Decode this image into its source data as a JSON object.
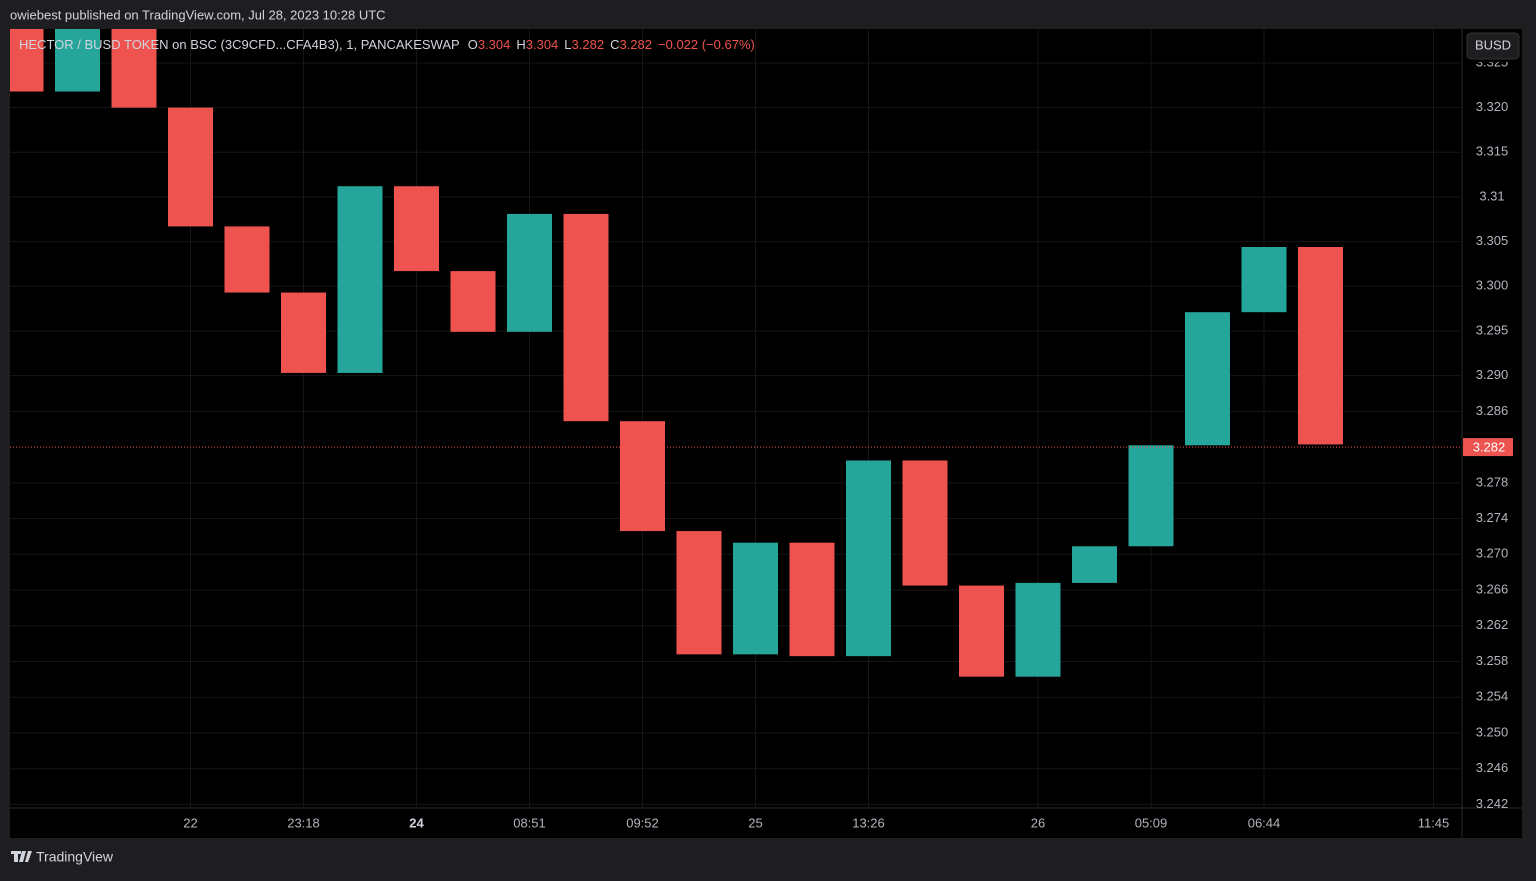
{
  "header": {
    "published": "owiebest published on TradingView.com, Jul 28, 2023 10:28 UTC",
    "brand": "TradingView"
  },
  "chart_data": {
    "type": "boxes",
    "title": "HECTOR / BUSD TOKEN on BSC (3C9CFD...CFA4B3), 1, PANCAKESWAP",
    "ohlc": [
      {
        "name": "O",
        "value": 3.304
      },
      {
        "name": "H",
        "value": 3.304
      },
      {
        "name": "L",
        "value": 3.282
      },
      {
        "name": "C",
        "value": 3.282
      }
    ],
    "change": "−0.022 (−0.67%)",
    "currency": "BUSD",
    "categories": [
      null,
      null,
      null,
      "22",
      null,
      "23:18",
      null,
      "24",
      null,
      "08:51",
      null,
      "09:52",
      null,
      "25",
      null,
      "13:26",
      null,
      null,
      "26",
      null,
      "05:09",
      null,
      "06:44",
      null,
      null,
      "11:45"
    ],
    "open": [
      3.33,
      3.3218,
      3.33,
      3.32,
      3.3067,
      3.2993,
      3.2903,
      3.3112,
      3.3017,
      3.2949,
      3.3081,
      3.2849,
      3.2726,
      3.2588,
      3.2713,
      3.2586,
      3.2805,
      3.2665,
      3.2563,
      3.2668,
      3.2709,
      3.2822,
      3.2971,
      3.3044,
      null,
      null
    ],
    "close": [
      3.3218,
      3.33,
      3.32,
      3.3067,
      3.2993,
      3.2903,
      3.3112,
      3.3017,
      3.2949,
      3.3081,
      3.2849,
      3.2726,
      3.2588,
      3.2713,
      3.2586,
      3.2805,
      3.2665,
      3.2563,
      3.2668,
      3.2709,
      3.2822,
      3.2971,
      3.3044,
      3.2823,
      null,
      null
    ],
    "up_color": "#26a69a",
    "down_color": "#ef5350",
    "ylim": [
      3.2416,
      3.3288
    ],
    "yticks": [
      3.325,
      {
        "value": 3.32,
        "label": "3.320"
      },
      3.315,
      3.31,
      3.305,
      {
        "value": 3.3,
        "label": "3.300"
      },
      3.295,
      {
        "value": 3.29,
        "label": "3.290"
      },
      3.286,
      3.278,
      3.274,
      {
        "value": 3.27,
        "label": "3.270"
      },
      3.266,
      3.262,
      3.258,
      3.254,
      {
        "value": 3.25,
        "label": "3.250"
      },
      3.246,
      3.242
    ],
    "last_price": 3.282,
    "grid": true
  }
}
